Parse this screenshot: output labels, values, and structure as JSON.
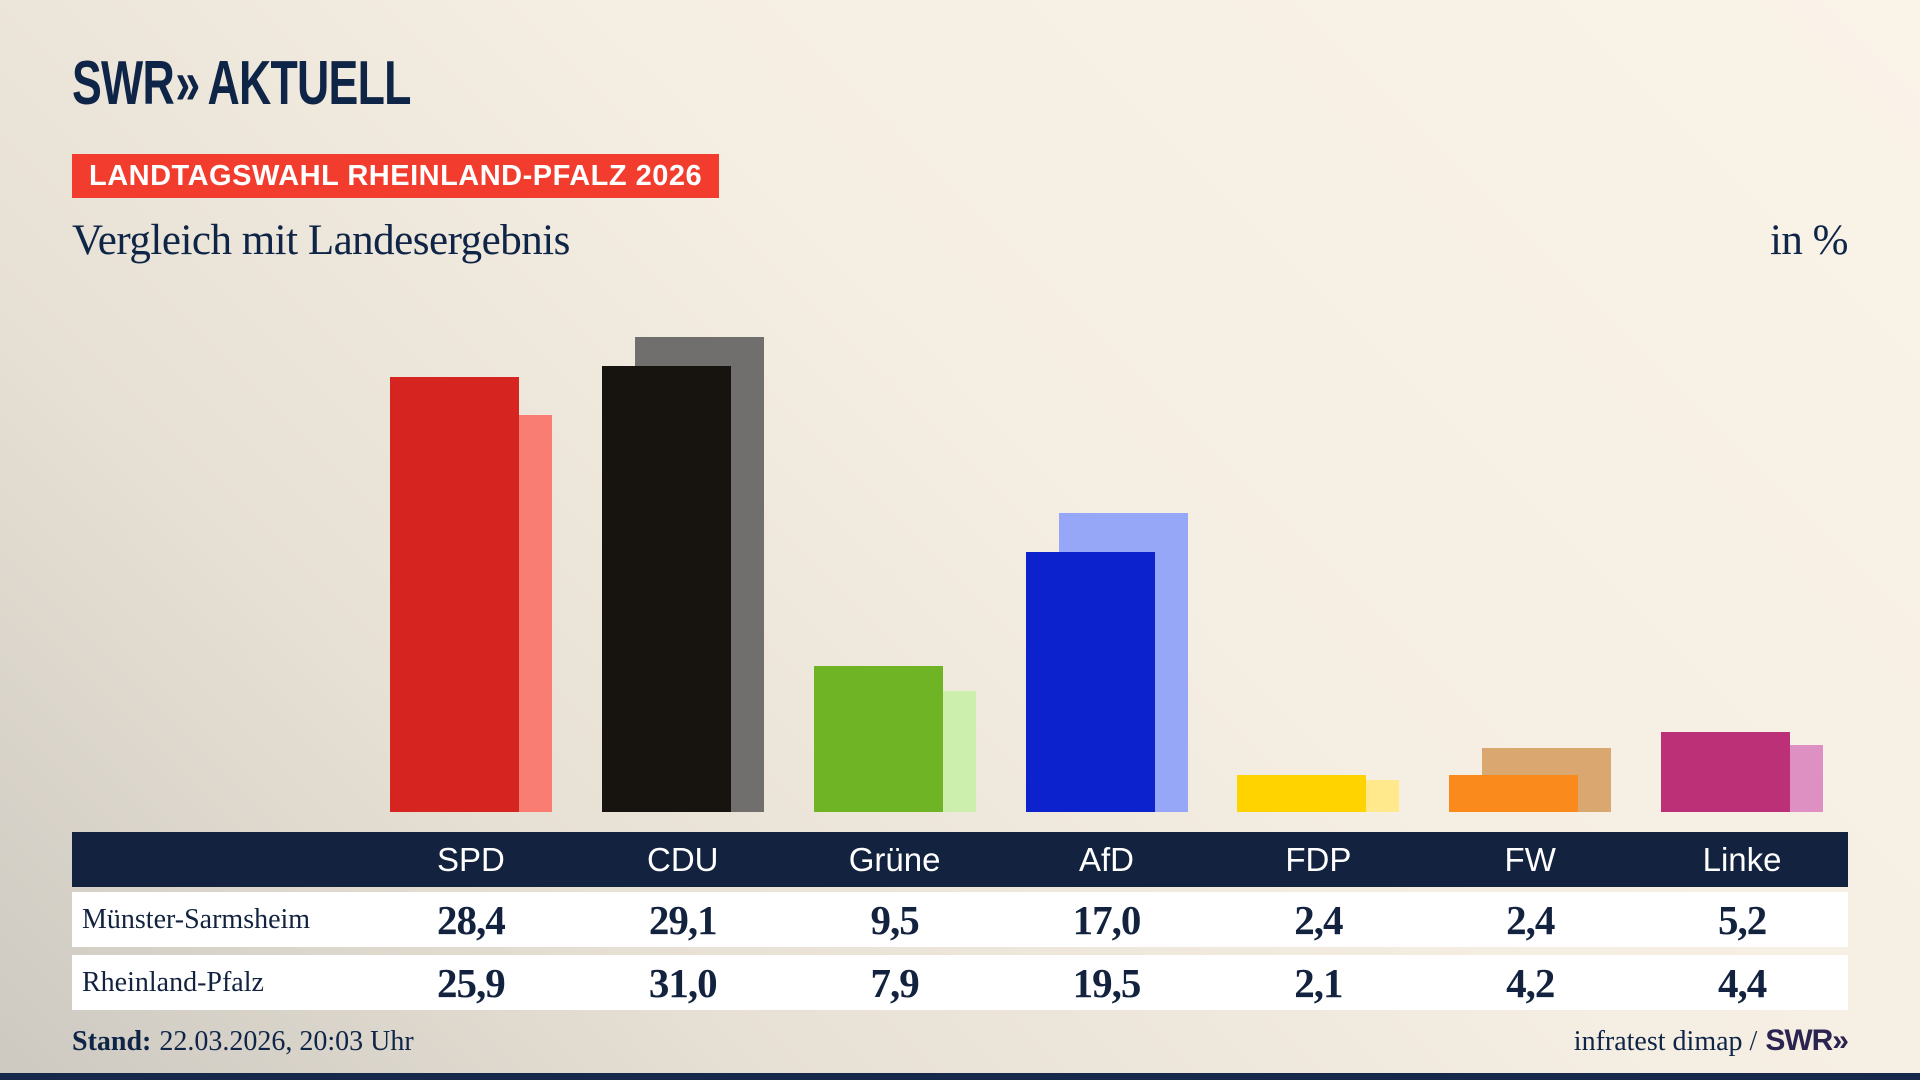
{
  "header": {
    "logo": {
      "swr": "SWR",
      "chevrons": "»",
      "aktuell": "AKTUELL"
    },
    "banner": "LANDTAGSWAHL RHEINLAND-PFALZ 2026"
  },
  "title": "Vergleich mit Landesergebnis",
  "unit_label": "in %",
  "chart_data": {
    "type": "bar",
    "title": "Vergleich mit Landesergebnis",
    "unit": "in %",
    "categories": [
      "SPD",
      "CDU",
      "Grüne",
      "AfD",
      "FDP",
      "FW",
      "Linke"
    ],
    "series": [
      {
        "name": "Münster-Sarmsheim",
        "values": [
          28.4,
          29.1,
          9.5,
          17.0,
          2.4,
          2.4,
          5.2
        ],
        "colors": [
          "#d62420",
          "#17130e",
          "#6fb424",
          "#0b22cc",
          "#ffd300",
          "#fa8a1b",
          "#bc3077"
        ]
      },
      {
        "name": "Rheinland-Pfalz",
        "values": [
          25.9,
          31.0,
          7.9,
          19.5,
          2.1,
          4.2,
          4.4
        ],
        "colors": [
          "#f97d72",
          "#716f6e",
          "#cdefad",
          "#96a7f7",
          "#ffe98c",
          "#d9a76f",
          "#de90c2"
        ]
      }
    ],
    "ylim": [
      0,
      31
    ],
    "grid": false,
    "axes_hidden": true,
    "legend_position": "table-below",
    "value_format": "de-decimal-comma"
  },
  "footer": {
    "stand_label": "Stand:",
    "stand_value": "22.03.2026, 20:03 Uhr",
    "source_text": "infratest dimap /",
    "source_logo": "SWR»"
  },
  "colors": {
    "navy_text": "#0f2547",
    "table_header_bg": "#13233f",
    "banner_red": "#f23c2e",
    "footer_logo_purple": "#2b2350",
    "bottom_bar_navy": "#16294a",
    "background_light": "#faf3e8",
    "background_dark_corner": "#cdc9c1"
  }
}
